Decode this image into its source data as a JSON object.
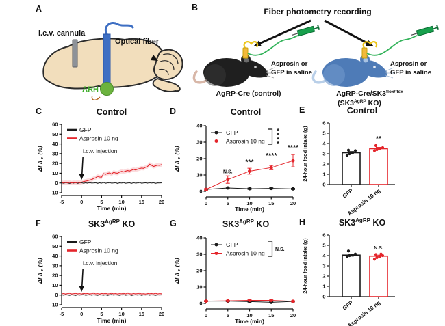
{
  "colors": {
    "trace_red": "#e4252b",
    "trace_black": "#1a1a1a",
    "mouse_blue": "#4e7bb7",
    "mouse_black": "#1f1f1f",
    "syringe_green": "#17a04c",
    "implant_yellow": "#f2b93b",
    "brain_tan": "#f2debc",
    "fiber_blue": "#3e6fc3",
    "arh_green": "#6cb33e"
  },
  "panels": {
    "A": {
      "label": "A",
      "cannula_label": "i.c.v. cannula",
      "fiber_label": "Optical fiber",
      "region_label": "ARH"
    },
    "B": {
      "label": "B",
      "title": "Fiber photometry recording",
      "mice": [
        {
          "injection_line1": "Asprosin or",
          "injection_line2": "GFP in saline",
          "name": "AgRP-Cre (control)"
        },
        {
          "injection_line1": "Asprosin or",
          "injection_line2": "GFP in saline",
          "name_base": "AgRP-Cre/SK3",
          "name_sup": "flox/flox",
          "name2_base": "(SK3",
          "name2_sup": "AgRP",
          "name2_rest": " KO)"
        }
      ]
    },
    "C": {
      "label": "C",
      "title": {
        "base": "Control",
        "sup": "",
        "rest": ""
      }
    },
    "D": {
      "label": "D",
      "title": {
        "base": "Control",
        "sup": "",
        "rest": ""
      }
    },
    "E": {
      "label": "E",
      "title": {
        "base": "Control",
        "sup": "",
        "rest": ""
      }
    },
    "F": {
      "label": "F",
      "title": {
        "base": "SK3",
        "sup": "AgRP",
        "rest": " KO"
      }
    },
    "G": {
      "label": "G",
      "title": {
        "base": "SK3",
        "sup": "AgRP",
        "rest": " KO"
      }
    },
    "H": {
      "label": "H",
      "title": {
        "base": "SK3",
        "sup": "AgRP",
        "rest": " KO"
      }
    }
  },
  "chart_data": [
    {
      "panel": "C",
      "type": "line",
      "title": "Control",
      "xlim": [
        -5,
        20
      ],
      "ylim": [
        -10,
        60
      ],
      "xticks": [
        -5,
        0,
        5,
        10,
        15,
        20
      ],
      "yticks": [
        -10,
        0,
        10,
        20,
        30,
        40,
        50,
        60
      ],
      "xlabel": "Time (min)",
      "ylabel": {
        "main": "ΔF/F",
        "sub": "n",
        "rest": " (%)"
      },
      "zero_line": true,
      "annotation": {
        "text": "i.c.v. injection",
        "x": 0
      },
      "legend": [
        {
          "name": "GFP",
          "color": "#1a1a1a"
        },
        {
          "name": "Asprosin 10 ng",
          "color": "#e4252b"
        }
      ],
      "series": [
        {
          "name": "GFP",
          "color": "#1a1a1a",
          "width": 0.9,
          "band": 0.7,
          "band_color": "rgba(110,110,110,0.22)",
          "x_start": -5,
          "x_step": 0.5,
          "values": [
            0.2,
            -0.3,
            0.4,
            0.0,
            -0.5,
            0.3,
            -0.2,
            0.5,
            -0.4,
            0.1,
            0.3,
            -0.3,
            0.2,
            -0.2,
            0.4,
            -0.1,
            0.0,
            0.3,
            -0.4,
            0.2,
            -0.2,
            0.5,
            -0.3,
            0.1,
            0.4,
            -0.2,
            0.0,
            0.3,
            -0.5,
            0.2,
            -0.1,
            0.4,
            -0.3,
            0.0,
            0.2,
            -0.4,
            0.3,
            -0.2,
            0.1,
            0.5,
            -0.3,
            0.0,
            0.2,
            -0.2,
            0.4,
            -0.1,
            0.3,
            -0.4,
            0.1,
            0.0,
            0.2
          ]
        },
        {
          "name": "Asprosin 10 ng",
          "color": "#e4252b",
          "width": 1.1,
          "band": 2.2,
          "band_color": "rgba(235,80,90,0.20)",
          "x_start": -5,
          "x_step": 0.5,
          "values": [
            0.4,
            0.1,
            0.6,
            0.2,
            0.5,
            0.0,
            0.4,
            0.2,
            0.6,
            0.3,
            0.8,
            1.4,
            1.9,
            2.3,
            3.0,
            3.5,
            4.6,
            5.3,
            6.8,
            6.1,
            6.0,
            9.6,
            8.8,
            9.9,
            10.3,
            9.1,
            10.9,
            10.2,
            10.0,
            11.1,
            11.9,
            11.3,
            12.1,
            12.7,
            12.2,
            13.1,
            13.9,
            13.3,
            14.1,
            14.7,
            15.3,
            15.0,
            16.1,
            16.9,
            19.2,
            18.1,
            16.9,
            17.6,
            18.3,
            18.0,
            18.9
          ]
        }
      ]
    },
    {
      "panel": "D",
      "type": "scatter",
      "title": "Control",
      "x": [
        0,
        5,
        10,
        15,
        20
      ],
      "xlim": [
        0,
        20
      ],
      "ylim": [
        0,
        40
      ],
      "xticks": [
        0,
        5,
        10,
        15,
        20
      ],
      "yticks": [
        0,
        10,
        20,
        30,
        40
      ],
      "xlabel": "Time (min)",
      "ylabel": {
        "main": "ΔF/F",
        "sub": "n",
        "rest": " (%)"
      },
      "series": [
        {
          "name": "GFP",
          "color": "#1a1a1a",
          "values": [
            1.2,
            2.1,
            1.6,
            1.8,
            1.5
          ],
          "errors": [
            0.4,
            0.5,
            0.4,
            0.4,
            0.4
          ]
        },
        {
          "name": "Asprosin 10 ng",
          "color": "#e4252b",
          "values": [
            1.2,
            7.2,
            12.3,
            14.5,
            18.7
          ],
          "errors": [
            0.5,
            2.3,
            1.8,
            1.3,
            3.8
          ]
        }
      ],
      "sig": [
        {
          "x": 5,
          "y": 11,
          "label": "N.S."
        },
        {
          "x": 10,
          "y": 16.5,
          "label": "***"
        },
        {
          "x": 15,
          "y": 20.5,
          "label": "****"
        },
        {
          "x": 20,
          "y": 25.5,
          "label": "****"
        }
      ],
      "legend_sig": {
        "label": "****",
        "vertical": true
      }
    },
    {
      "panel": "E",
      "type": "bar",
      "title": "Control",
      "ylabel": "24-hour food intake (g)",
      "ylim": [
        0,
        6
      ],
      "yticks": [
        0,
        1,
        2,
        3,
        4,
        5,
        6
      ],
      "bars": [
        {
          "label": "GFP",
          "color": "#1a1a1a",
          "value": 3.1,
          "err": 0.12,
          "dots": [
            2.85,
            3.0,
            3.1,
            3.3,
            3.35
          ]
        },
        {
          "label": "Asprosin 10 ng",
          "color": "#e4252b",
          "value": 3.5,
          "err": 0.13,
          "dots": [
            3.3,
            3.4,
            3.5,
            3.6,
            3.8
          ],
          "sig": "**"
        }
      ]
    },
    {
      "panel": "F",
      "type": "line",
      "title": "SK3-AgRP KO",
      "xlim": [
        -5,
        20
      ],
      "ylim": [
        -10,
        60
      ],
      "xticks": [
        -5,
        0,
        5,
        10,
        15,
        20
      ],
      "yticks": [
        -10,
        0,
        10,
        20,
        30,
        40,
        50,
        60
      ],
      "xlabel": "Time (min)",
      "ylabel": {
        "main": "ΔF/F",
        "sub": "n",
        "rest": " (%)"
      },
      "zero_line": true,
      "annotation": {
        "text": "i.c.v. injection",
        "x": 0
      },
      "legend": [
        {
          "name": "GFP",
          "color": "#1a1a1a"
        },
        {
          "name": "Asprosin 10 ng",
          "color": "#e4252b"
        }
      ],
      "series": [
        {
          "name": "GFP",
          "color": "#1a1a1a",
          "width": 0.9,
          "band": 0.7,
          "band_color": "rgba(110,110,110,0.22)",
          "x_start": -5,
          "x_step": 0.5,
          "values": [
            0.3,
            -0.2,
            0.5,
            0.1,
            -0.3,
            0.4,
            0.0,
            -0.4,
            0.3,
            -0.1,
            0.2,
            0.5,
            -0.3,
            0.1,
            0.4,
            -0.2,
            0.3,
            0.0,
            -0.3,
            0.4,
            0.1,
            -0.2,
            0.3,
            -0.4,
            0.2,
            0.5,
            -0.1,
            0.3,
            0.0,
            -0.3,
            0.2,
            0.4,
            -0.2,
            0.1,
            0.3,
            -0.4,
            0.0,
            0.3,
            -0.1,
            0.4,
            -0.3,
            0.2,
            0.0,
            0.4,
            -0.2,
            0.3,
            0.1,
            -0.3,
            0.2,
            0.0,
            0.3
          ]
        },
        {
          "name": "Asprosin 10 ng",
          "color": "#e4252b",
          "width": 1.0,
          "band": 1.1,
          "band_color": "rgba(235,80,90,0.20)",
          "x_start": -5,
          "x_step": 0.5,
          "values": [
            1.2,
            1.6,
            1.0,
            1.5,
            1.8,
            1.1,
            1.4,
            1.7,
            1.2,
            1.5,
            1.0,
            1.8,
            1.3,
            1.6,
            1.1,
            1.4,
            1.9,
            1.2,
            1.5,
            1.0,
            1.6,
            1.3,
            1.7,
            1.1,
            1.4,
            1.8,
            1.2,
            1.6,
            1.0,
            1.5,
            1.3,
            1.7,
            1.1,
            1.9,
            1.4,
            1.0,
            1.6,
            1.2,
            1.5,
            1.8,
            1.1,
            1.4,
            1.0,
            1.7,
            1.3,
            1.6,
            1.2,
            1.8,
            1.1,
            1.5,
            1.3
          ]
        }
      ]
    },
    {
      "panel": "G",
      "type": "scatter",
      "title": "SK3-AgRP KO",
      "x": [
        0,
        5,
        10,
        15,
        20
      ],
      "xlim": [
        0,
        20
      ],
      "ylim": [
        0,
        40
      ],
      "xticks": [
        0,
        5,
        10,
        15,
        20
      ],
      "yticks": [
        0,
        10,
        20,
        30,
        40
      ],
      "xlabel": "Time (min)",
      "ylabel": {
        "main": "ΔF/F",
        "sub": "n",
        "rest": " (%)"
      },
      "series": [
        {
          "name": "GFP",
          "color": "#1a1a1a",
          "values": [
            1.4,
            1.4,
            1.1,
            0.7,
            1.2
          ],
          "errors": [
            0.3,
            0.3,
            0.3,
            0.3,
            0.3
          ]
        },
        {
          "name": "Asprosin 10 ng",
          "color": "#e4252b",
          "values": [
            1.4,
            1.6,
            1.9,
            1.9,
            1.3
          ],
          "errors": [
            0.3,
            0.3,
            0.3,
            0.3,
            0.3
          ]
        }
      ],
      "sig": [],
      "legend_sig": {
        "label": "N.S.",
        "vertical": false
      }
    },
    {
      "panel": "H",
      "type": "bar",
      "title": "SK3-AgRP KO",
      "ylabel": "24-hour food intake (g)",
      "ylim": [
        0,
        6
      ],
      "yticks": [
        0,
        1,
        2,
        3,
        4,
        5,
        6
      ],
      "bars": [
        {
          "label": "GFP",
          "color": "#1a1a1a",
          "value": 4.05,
          "err": 0.1,
          "dots": [
            3.9,
            4.0,
            4.05,
            4.15,
            4.45
          ]
        },
        {
          "label": "Asprosin 10 ng",
          "color": "#e4252b",
          "value": 3.95,
          "err": 0.1,
          "dots": [
            3.65,
            3.8,
            3.9,
            4.0,
            4.1,
            4.15
          ],
          "sig": "N.S."
        }
      ]
    }
  ]
}
